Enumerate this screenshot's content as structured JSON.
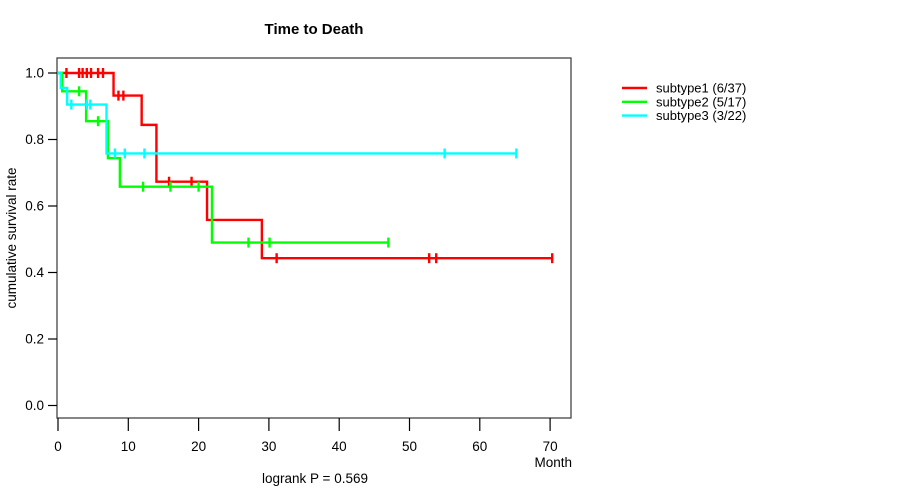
{
  "chart_data": {
    "type": "line",
    "subtype": "kaplan-meier-step-curves",
    "title": "Time to Death",
    "xlabel": "Month",
    "ylabel": "cumulative survival rate",
    "annotation": "logrank P = 0.569",
    "xlim": [
      0,
      73
    ],
    "ylim": [
      -0.04,
      1.04
    ],
    "x_ticks": [
      0,
      10,
      20,
      30,
      40,
      50,
      60,
      70
    ],
    "y_ticks": [
      0.0,
      0.2,
      0.4,
      0.6,
      0.8,
      1.0
    ],
    "grid": false,
    "legend_position": "right-outside",
    "axis_color": "#444444",
    "text_color": "#000000",
    "series": [
      {
        "name": "subtype1 (6/37)",
        "color": "#ff0000",
        "steps": [
          [
            0,
            1.0
          ],
          [
            7.9,
            0.932
          ],
          [
            11.9,
            0.844
          ],
          [
            14.0,
            0.673
          ],
          [
            21.2,
            0.558
          ],
          [
            29.0,
            0.443
          ]
        ],
        "end": 70.3,
        "censors": [
          [
            1.2,
            1.0
          ],
          [
            3.0,
            1.0
          ],
          [
            3.5,
            1.0
          ],
          [
            4.1,
            1.0
          ],
          [
            4.7,
            1.0
          ],
          [
            5.7,
            1.0
          ],
          [
            6.4,
            1.0
          ],
          [
            8.6,
            0.932
          ],
          [
            9.3,
            0.932
          ],
          [
            15.8,
            0.673
          ],
          [
            19.0,
            0.673
          ],
          [
            31.1,
            0.443
          ],
          [
            52.8,
            0.443
          ],
          [
            53.8,
            0.443
          ],
          [
            70.3,
            0.443
          ]
        ]
      },
      {
        "name": "subtype2 (5/17)",
        "color": "#00ff00",
        "steps": [
          [
            0,
            1.0
          ],
          [
            0.6,
            0.945
          ],
          [
            4.0,
            0.855
          ],
          [
            7.1,
            0.744
          ],
          [
            8.8,
            0.658
          ],
          [
            21.9,
            0.49
          ]
        ],
        "end": 47.0,
        "censors": [
          [
            3.0,
            0.945
          ],
          [
            5.7,
            0.855
          ],
          [
            12.1,
            0.658
          ],
          [
            16.0,
            0.658
          ],
          [
            20.0,
            0.658
          ],
          [
            27.1,
            0.49
          ],
          [
            30.1,
            0.49
          ],
          [
            47.0,
            0.49
          ]
        ]
      },
      {
        "name": "subtype3 (3/22)",
        "color": "#00ffff",
        "steps": [
          [
            0,
            1.0
          ],
          [
            0.4,
            0.955
          ],
          [
            1.3,
            0.905
          ],
          [
            6.9,
            0.758
          ]
        ],
        "end": 65.2,
        "censors": [
          [
            1.9,
            0.905
          ],
          [
            4.1,
            0.905
          ],
          [
            4.6,
            0.905
          ],
          [
            8.1,
            0.758
          ],
          [
            9.5,
            0.758
          ],
          [
            12.3,
            0.758
          ],
          [
            55.0,
            0.758
          ],
          [
            65.2,
            0.758
          ]
        ]
      }
    ]
  }
}
